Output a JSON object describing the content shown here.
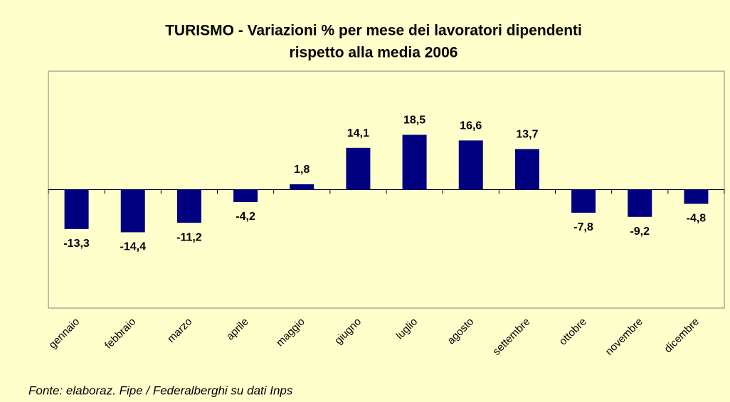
{
  "chart_data": {
    "type": "bar",
    "title": [
      "TURISMO - Variazioni % per mese dei lavoratori dipendenti",
      "rispetto alla media 2006"
    ],
    "categories": [
      "gennaio",
      "febbraio",
      "marzo",
      "aprile",
      "maggio",
      "giugno",
      "luglio",
      "agosto",
      "settembre",
      "ottobre",
      "novembre",
      "dicembre"
    ],
    "values": [
      -13.3,
      -14.4,
      -11.2,
      -4.2,
      1.8,
      14.1,
      18.5,
      16.6,
      13.7,
      -7.8,
      -9.2,
      -4.8
    ],
    "value_labels": [
      "-13,3",
      "-14,4",
      "-11,2",
      "-4,2",
      "1,8",
      "14,1",
      "18,5",
      "16,6",
      "13,7",
      "-7,8",
      "-9,2",
      "-4,8"
    ],
    "color": "#000080",
    "ylim": [
      -40,
      40
    ],
    "source": "Fonte: elaboraz. Fipe / Federalberghi su dati Inps"
  }
}
